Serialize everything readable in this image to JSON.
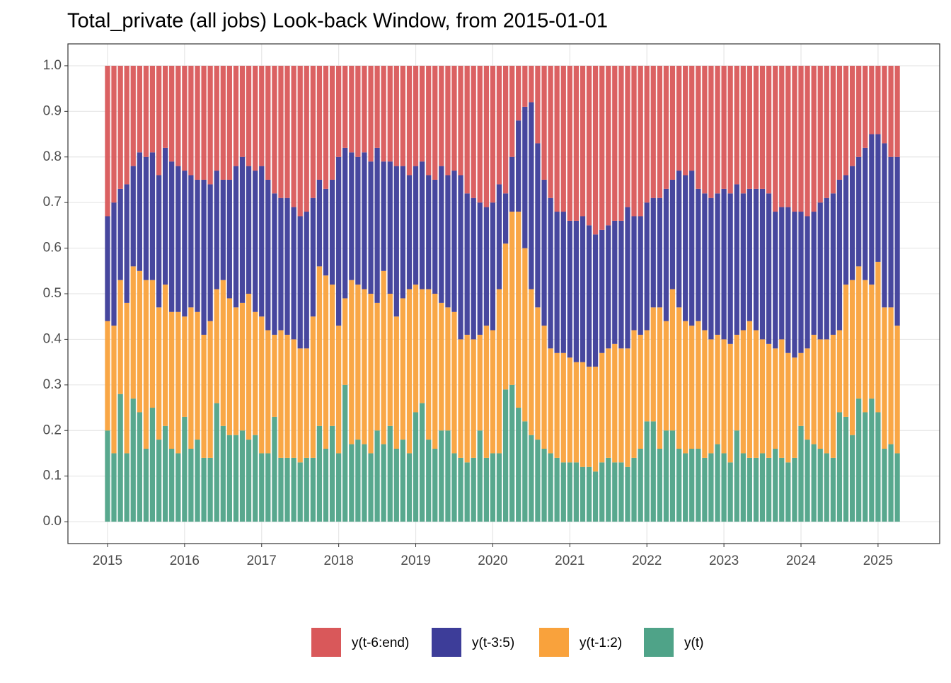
{
  "chart_data": {
    "type": "stacked_bar",
    "title": "Total_private (all jobs) Look-back Window, from 2015-01-01",
    "x": [
      2015,
      2015.083,
      2015.167,
      2015.25,
      2015.333,
      2015.417,
      2015.5,
      2015.583,
      2015.667,
      2015.75,
      2015.833,
      2015.917,
      2016,
      2016.083,
      2016.167,
      2016.25,
      2016.333,
      2016.417,
      2016.5,
      2016.583,
      2016.667,
      2016.75,
      2016.833,
      2016.917,
      2017,
      2017.083,
      2017.167,
      2017.25,
      2017.333,
      2017.417,
      2017.5,
      2017.583,
      2017.667,
      2017.75,
      2017.833,
      2017.917,
      2018,
      2018.083,
      2018.167,
      2018.25,
      2018.333,
      2018.417,
      2018.5,
      2018.583,
      2018.667,
      2018.75,
      2018.833,
      2018.917,
      2019,
      2019.083,
      2019.167,
      2019.25,
      2019.333,
      2019.417,
      2019.5,
      2019.583,
      2019.667,
      2019.75,
      2019.833,
      2019.917,
      2020,
      2020.083,
      2020.167,
      2020.25,
      2020.333,
      2020.417,
      2020.5,
      2020.583,
      2020.667,
      2020.75,
      2020.833,
      2020.917,
      2021,
      2021.083,
      2021.167,
      2021.25,
      2021.333,
      2021.417,
      2021.5,
      2021.583,
      2021.667,
      2021.75,
      2021.833,
      2021.917,
      2022,
      2022.083,
      2022.167,
      2022.25,
      2022.333,
      2022.417,
      2022.5,
      2022.583,
      2022.667,
      2022.75,
      2022.833,
      2022.917,
      2023,
      2023.083,
      2023.167,
      2023.25,
      2023.333,
      2023.417,
      2023.5,
      2023.583,
      2023.667,
      2023.75,
      2023.833,
      2023.917,
      2024,
      2024.083,
      2024.167,
      2024.25,
      2024.333,
      2024.417,
      2024.5,
      2024.583,
      2024.667,
      2024.75,
      2024.833,
      2024.917,
      2025,
      2025.083,
      2025.167,
      2025.25
    ],
    "series": [
      {
        "name": "y(t-6:end)",
        "color": "#d9585a",
        "values": [
          0.33,
          0.3,
          0.27,
          0.26,
          0.22,
          0.19,
          0.2,
          0.19,
          0.24,
          0.18,
          0.21,
          0.22,
          0.23,
          0.24,
          0.25,
          0.25,
          0.26,
          0.23,
          0.25,
          0.25,
          0.22,
          0.2,
          0.22,
          0.23,
          0.22,
          0.25,
          0.28,
          0.29,
          0.29,
          0.31,
          0.33,
          0.32,
          0.29,
          0.25,
          0.27,
          0.25,
          0.2,
          0.18,
          0.19,
          0.2,
          0.19,
          0.21,
          0.18,
          0.21,
          0.21,
          0.22,
          0.22,
          0.24,
          0.22,
          0.21,
          0.24,
          0.25,
          0.22,
          0.24,
          0.23,
          0.24,
          0.28,
          0.29,
          0.3,
          0.31,
          0.3,
          0.26,
          0.28,
          0.2,
          0.12,
          0.09,
          0.08,
          0.17,
          0.25,
          0.29,
          0.32,
          0.32,
          0.34,
          0.34,
          0.33,
          0.35,
          0.37,
          0.36,
          0.35,
          0.34,
          0.34,
          0.31,
          0.33,
          0.33,
          0.3,
          0.29,
          0.29,
          0.27,
          0.25,
          0.23,
          0.24,
          0.23,
          0.27,
          0.28,
          0.29,
          0.28,
          0.27,
          0.28,
          0.26,
          0.28,
          0.27,
          0.27,
          0.27,
          0.28,
          0.32,
          0.31,
          0.31,
          0.32,
          0.32,
          0.33,
          0.32,
          0.3,
          0.29,
          0.28,
          0.25,
          0.24,
          0.22,
          0.2,
          0.18,
          0.15,
          0.15,
          0.17,
          0.2,
          0.2
        ]
      },
      {
        "name": "y(t-3:5)",
        "color": "#3d3d99",
        "values": [
          0.23,
          0.27,
          0.2,
          0.26,
          0.22,
          0.26,
          0.27,
          0.28,
          0.29,
          0.3,
          0.33,
          0.32,
          0.32,
          0.29,
          0.29,
          0.34,
          0.3,
          0.26,
          0.22,
          0.26,
          0.31,
          0.32,
          0.28,
          0.31,
          0.33,
          0.33,
          0.31,
          0.29,
          0.3,
          0.29,
          0.29,
          0.3,
          0.26,
          0.19,
          0.19,
          0.23,
          0.37,
          0.33,
          0.28,
          0.28,
          0.3,
          0.29,
          0.34,
          0.24,
          0.29,
          0.33,
          0.29,
          0.25,
          0.26,
          0.28,
          0.25,
          0.25,
          0.3,
          0.29,
          0.31,
          0.36,
          0.31,
          0.31,
          0.29,
          0.26,
          0.28,
          0.23,
          0.11,
          0.12,
          0.2,
          0.31,
          0.41,
          0.36,
          0.32,
          0.33,
          0.31,
          0.31,
          0.3,
          0.31,
          0.32,
          0.31,
          0.29,
          0.27,
          0.27,
          0.27,
          0.28,
          0.31,
          0.25,
          0.26,
          0.28,
          0.24,
          0.24,
          0.29,
          0.24,
          0.3,
          0.32,
          0.34,
          0.29,
          0.3,
          0.31,
          0.31,
          0.33,
          0.33,
          0.33,
          0.3,
          0.29,
          0.31,
          0.33,
          0.33,
          0.3,
          0.29,
          0.32,
          0.32,
          0.31,
          0.29,
          0.27,
          0.3,
          0.31,
          0.31,
          0.33,
          0.24,
          0.25,
          0.24,
          0.29,
          0.33,
          0.28,
          0.36,
          0.33,
          0.37
        ]
      },
      {
        "name": "y(t-1:2)",
        "color": "#f9a23c",
        "values": [
          0.24,
          0.28,
          0.25,
          0.33,
          0.29,
          0.31,
          0.37,
          0.28,
          0.29,
          0.31,
          0.3,
          0.31,
          0.22,
          0.31,
          0.28,
          0.27,
          0.3,
          0.25,
          0.32,
          0.3,
          0.28,
          0.28,
          0.32,
          0.27,
          0.3,
          0.27,
          0.18,
          0.28,
          0.27,
          0.26,
          0.25,
          0.24,
          0.31,
          0.35,
          0.38,
          0.31,
          0.28,
          0.19,
          0.36,
          0.34,
          0.34,
          0.35,
          0.28,
          0.38,
          0.29,
          0.29,
          0.31,
          0.36,
          0.28,
          0.25,
          0.33,
          0.34,
          0.28,
          0.27,
          0.31,
          0.26,
          0.28,
          0.26,
          0.21,
          0.29,
          0.27,
          0.36,
          0.32,
          0.38,
          0.43,
          0.38,
          0.32,
          0.29,
          0.27,
          0.23,
          0.23,
          0.24,
          0.23,
          0.22,
          0.23,
          0.22,
          0.23,
          0.24,
          0.24,
          0.26,
          0.25,
          0.26,
          0.28,
          0.25,
          0.2,
          0.25,
          0.31,
          0.24,
          0.31,
          0.31,
          0.29,
          0.27,
          0.28,
          0.28,
          0.25,
          0.24,
          0.25,
          0.26,
          0.21,
          0.27,
          0.3,
          0.28,
          0.25,
          0.25,
          0.22,
          0.26,
          0.24,
          0.22,
          0.16,
          0.2,
          0.24,
          0.24,
          0.25,
          0.27,
          0.18,
          0.29,
          0.34,
          0.29,
          0.29,
          0.25,
          0.33,
          0.31,
          0.3,
          0.28
        ]
      },
      {
        "name": "y(t)",
        "color": "#4fa388",
        "values": [
          0.2,
          0.15,
          0.28,
          0.15,
          0.27,
          0.24,
          0.16,
          0.25,
          0.18,
          0.21,
          0.16,
          0.15,
          0.23,
          0.16,
          0.18,
          0.14,
          0.14,
          0.26,
          0.21,
          0.19,
          0.19,
          0.2,
          0.18,
          0.19,
          0.15,
          0.15,
          0.23,
          0.14,
          0.14,
          0.14,
          0.13,
          0.14,
          0.14,
          0.21,
          0.16,
          0.21,
          0.15,
          0.3,
          0.17,
          0.18,
          0.17,
          0.15,
          0.2,
          0.17,
          0.21,
          0.16,
          0.18,
          0.15,
          0.24,
          0.26,
          0.18,
          0.16,
          0.2,
          0.2,
          0.15,
          0.14,
          0.13,
          0.14,
          0.2,
          0.14,
          0.15,
          0.15,
          0.29,
          0.3,
          0.25,
          0.22,
          0.19,
          0.18,
          0.16,
          0.15,
          0.14,
          0.13,
          0.13,
          0.13,
          0.12,
          0.12,
          0.11,
          0.13,
          0.14,
          0.13,
          0.13,
          0.12,
          0.14,
          0.16,
          0.22,
          0.22,
          0.16,
          0.2,
          0.2,
          0.16,
          0.15,
          0.16,
          0.16,
          0.14,
          0.15,
          0.17,
          0.15,
          0.13,
          0.2,
          0.15,
          0.14,
          0.14,
          0.15,
          0.14,
          0.16,
          0.14,
          0.13,
          0.14,
          0.21,
          0.18,
          0.17,
          0.16,
          0.15,
          0.14,
          0.24,
          0.23,
          0.19,
          0.27,
          0.24,
          0.27,
          0.24,
          0.16,
          0.17,
          0.15
        ]
      }
    ],
    "xlim": [
      2014.486,
      2025.8
    ],
    "xticks": [
      2015,
      2016,
      2017,
      2018,
      2019,
      2020,
      2021,
      2022,
      2023,
      2024,
      2025
    ],
    "ylim": [
      -0.048,
      1.048
    ],
    "yticks": [
      {
        "value": 0,
        "label": "0.0"
      },
      0.1,
      0.2,
      0.3,
      0.4,
      0.5,
      0.6,
      0.7,
      0.8,
      0.9,
      {
        "value": 1,
        "label": "1.0"
      }
    ],
    "grid": true,
    "legend_position": "bottom"
  }
}
